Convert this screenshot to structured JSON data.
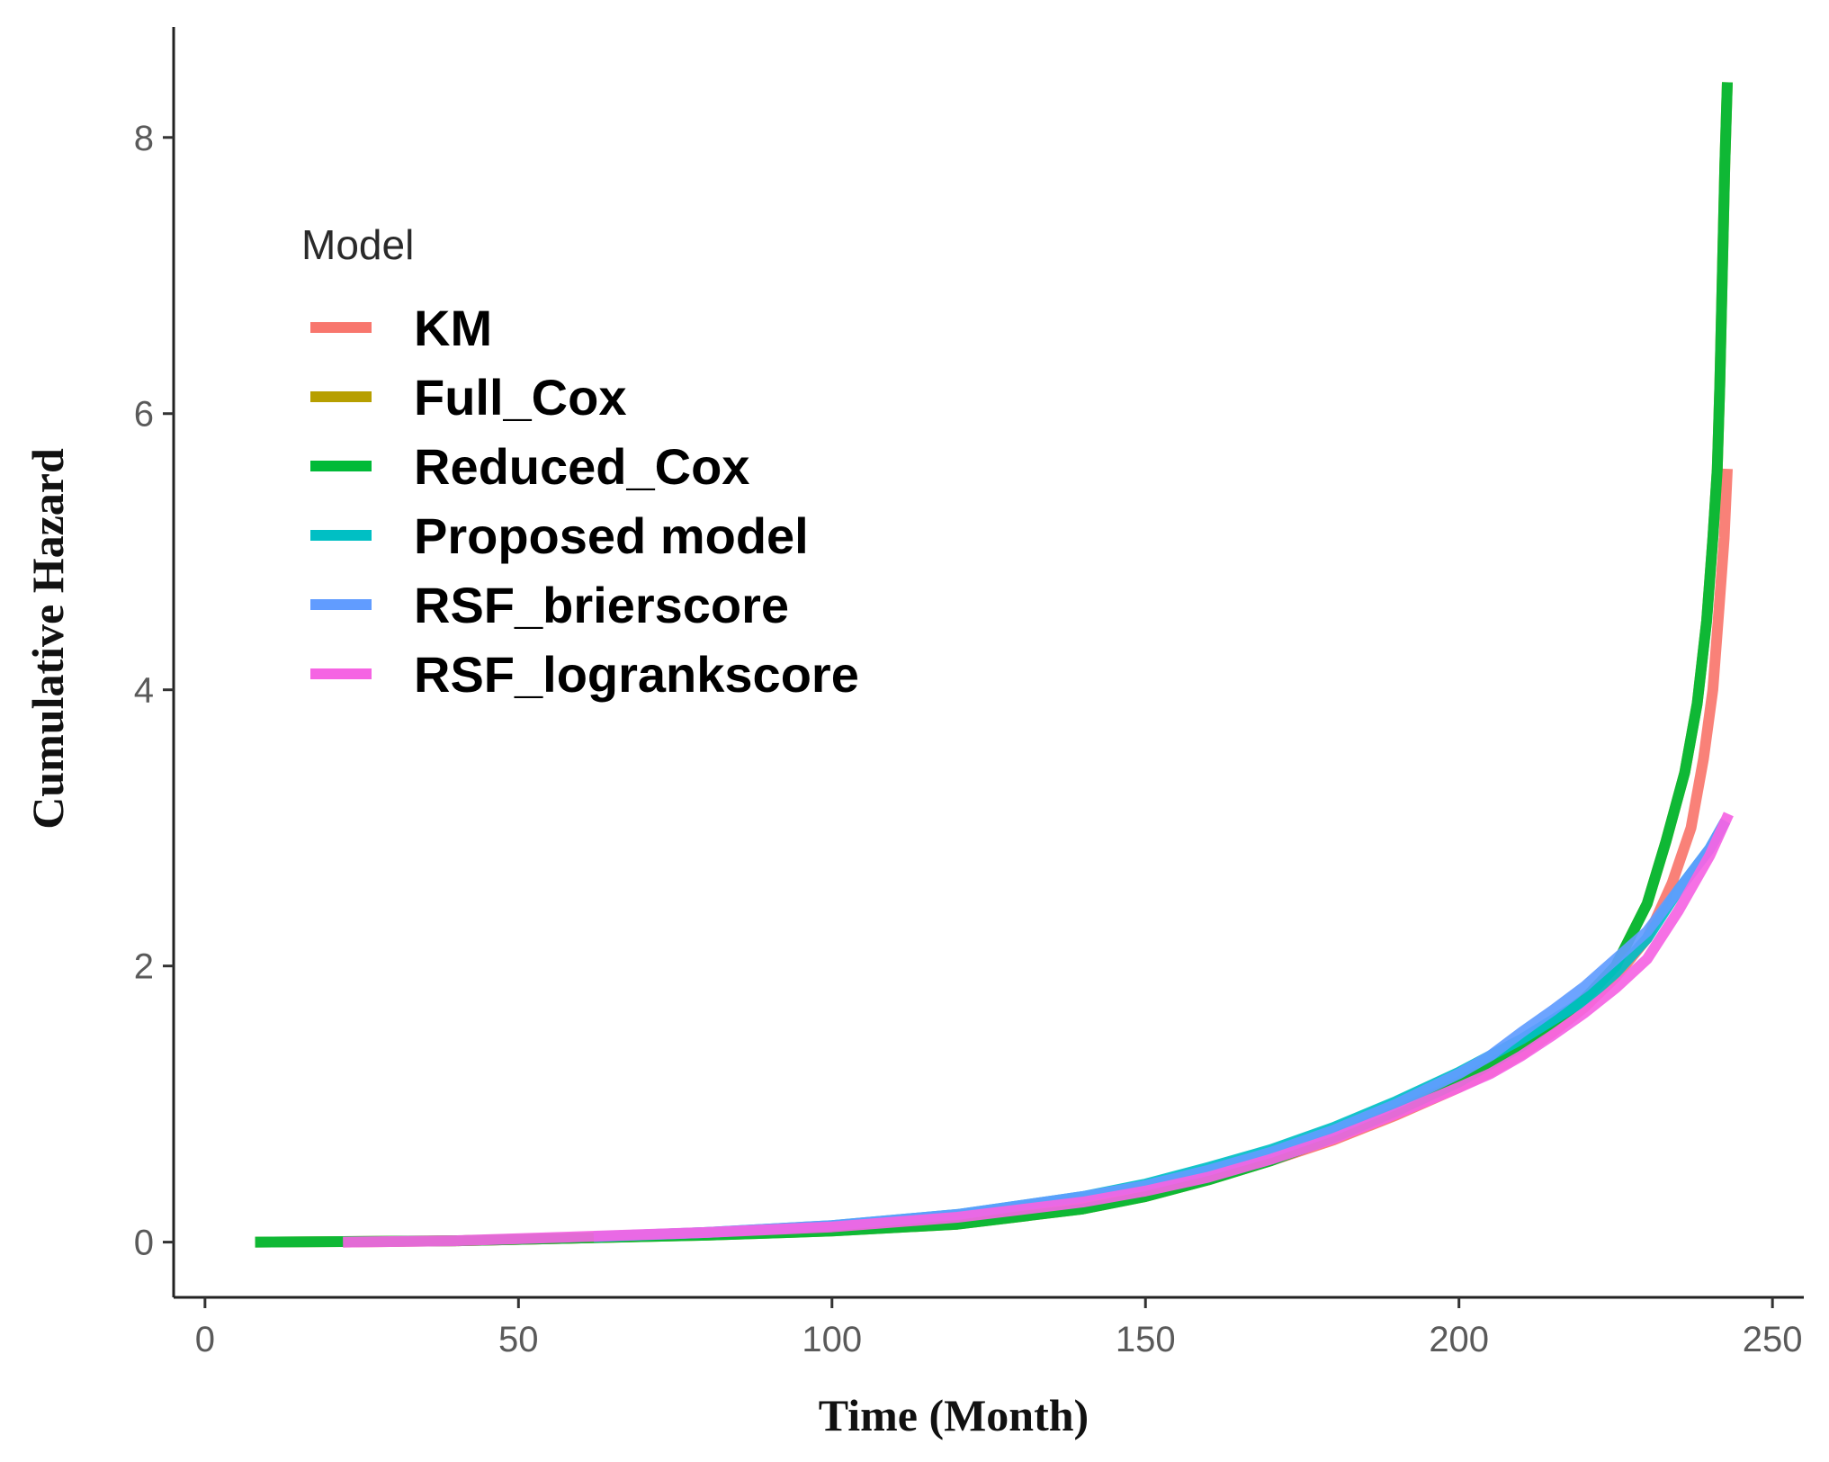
{
  "chart_data": {
    "type": "line",
    "title": "",
    "xlabel": "Time (Month)",
    "ylabel": "Cumulative Hazard",
    "xlim": [
      -5,
      255
    ],
    "ylim": [
      -0.4,
      8.8
    ],
    "x_ticks": [
      0,
      50,
      100,
      150,
      200,
      250
    ],
    "y_ticks": [
      0,
      2,
      4,
      6,
      8
    ],
    "grid": false,
    "legend": {
      "title": "Model",
      "position": "top-left"
    },
    "series": [
      {
        "name": "KM",
        "color": "#F8766D",
        "points": [
          [
            22,
            0
          ],
          [
            40,
            0.01
          ],
          [
            60,
            0.03
          ],
          [
            80,
            0.06
          ],
          [
            100,
            0.1
          ],
          [
            120,
            0.16
          ],
          [
            140,
            0.27
          ],
          [
            150,
            0.35
          ],
          [
            160,
            0.46
          ],
          [
            170,
            0.59
          ],
          [
            180,
            0.74
          ],
          [
            190,
            0.92
          ],
          [
            200,
            1.12
          ],
          [
            205,
            1.23
          ],
          [
            210,
            1.36
          ],
          [
            215,
            1.52
          ],
          [
            220,
            1.7
          ],
          [
            225,
            1.92
          ],
          [
            230,
            2.2
          ],
          [
            234,
            2.6
          ],
          [
            237,
            3.0
          ],
          [
            239,
            3.5
          ],
          [
            240.5,
            4.0
          ],
          [
            241.5,
            4.6
          ],
          [
            242.3,
            5.1
          ],
          [
            242.8,
            5.6
          ]
        ]
      },
      {
        "name": "Full_Cox",
        "color": "#B79F00",
        "points": [
          [
            8,
            0
          ],
          [
            40,
            0.01
          ],
          [
            60,
            0.03
          ],
          [
            80,
            0.05
          ],
          [
            100,
            0.08
          ],
          [
            120,
            0.13
          ],
          [
            140,
            0.24
          ],
          [
            150,
            0.33
          ],
          [
            160,
            0.45
          ],
          [
            170,
            0.59
          ],
          [
            180,
            0.76
          ],
          [
            190,
            0.95
          ],
          [
            200,
            1.16
          ],
          [
            210,
            1.42
          ],
          [
            220,
            1.76
          ],
          [
            225,
            2.0
          ],
          [
            230,
            2.45
          ],
          [
            233,
            2.9
          ],
          [
            236,
            3.4
          ],
          [
            238,
            3.9
          ],
          [
            239.5,
            4.5
          ],
          [
            240.5,
            5.1
          ],
          [
            241.2,
            5.6
          ],
          [
            241.6,
            6.2
          ],
          [
            242,
            7.0
          ],
          [
            242.4,
            7.8
          ],
          [
            242.8,
            8.4
          ]
        ]
      },
      {
        "name": "Reduced_Cox",
        "color": "#00BA38",
        "points": [
          [
            8,
            0
          ],
          [
            40,
            0.01
          ],
          [
            60,
            0.03
          ],
          [
            80,
            0.05
          ],
          [
            100,
            0.08
          ],
          [
            120,
            0.13
          ],
          [
            140,
            0.24
          ],
          [
            150,
            0.33
          ],
          [
            160,
            0.45
          ],
          [
            170,
            0.59
          ],
          [
            180,
            0.76
          ],
          [
            190,
            0.95
          ],
          [
            200,
            1.16
          ],
          [
            210,
            1.42
          ],
          [
            220,
            1.76
          ],
          [
            225,
            2.0
          ],
          [
            230,
            2.45
          ],
          [
            233,
            2.9
          ],
          [
            236,
            3.4
          ],
          [
            238,
            3.9
          ],
          [
            239.5,
            4.5
          ],
          [
            240.5,
            5.1
          ],
          [
            241.2,
            5.6
          ],
          [
            241.6,
            6.2
          ],
          [
            242,
            7.0
          ],
          [
            242.4,
            7.8
          ],
          [
            242.8,
            8.4
          ]
        ]
      },
      {
        "name": "Proposed model",
        "color": "#00BFC4",
        "points": [
          [
            62,
            0.04
          ],
          [
            80,
            0.07
          ],
          [
            100,
            0.12
          ],
          [
            120,
            0.2
          ],
          [
            140,
            0.33
          ],
          [
            150,
            0.42
          ],
          [
            160,
            0.54
          ],
          [
            170,
            0.67
          ],
          [
            180,
            0.83
          ],
          [
            190,
            1.02
          ],
          [
            200,
            1.23
          ],
          [
            210,
            1.47
          ],
          [
            220,
            1.75
          ],
          [
            225,
            1.95
          ],
          [
            230,
            2.2
          ],
          [
            235,
            2.55
          ],
          [
            240,
            2.85
          ],
          [
            242.5,
            3.05
          ]
        ]
      },
      {
        "name": "RSF_brierscore",
        "color": "#619CFF",
        "points": [
          [
            62,
            0.04
          ],
          [
            80,
            0.07
          ],
          [
            100,
            0.12
          ],
          [
            120,
            0.2
          ],
          [
            140,
            0.33
          ],
          [
            150,
            0.41
          ],
          [
            160,
            0.52
          ],
          [
            170,
            0.65
          ],
          [
            180,
            0.81
          ],
          [
            190,
            1.0
          ],
          [
            200,
            1.22
          ],
          [
            205,
            1.35
          ],
          [
            210,
            1.52
          ],
          [
            215,
            1.68
          ],
          [
            220,
            1.85
          ],
          [
            225,
            2.05
          ],
          [
            230,
            2.25
          ],
          [
            235,
            2.55
          ],
          [
            240,
            2.85
          ],
          [
            242.5,
            3.05
          ]
        ]
      },
      {
        "name": "RSF_logrankscore",
        "color": "#F564E3",
        "points": [
          [
            22,
            0
          ],
          [
            40,
            0.01
          ],
          [
            60,
            0.04
          ],
          [
            80,
            0.07
          ],
          [
            100,
            0.11
          ],
          [
            120,
            0.18
          ],
          [
            140,
            0.29
          ],
          [
            150,
            0.37
          ],
          [
            160,
            0.47
          ],
          [
            170,
            0.6
          ],
          [
            180,
            0.75
          ],
          [
            190,
            0.93
          ],
          [
            200,
            1.12
          ],
          [
            205,
            1.22
          ],
          [
            210,
            1.35
          ],
          [
            215,
            1.5
          ],
          [
            220,
            1.66
          ],
          [
            225,
            1.84
          ],
          [
            230,
            2.05
          ],
          [
            235,
            2.4
          ],
          [
            240,
            2.8
          ],
          [
            243,
            3.1
          ]
        ]
      }
    ]
  }
}
